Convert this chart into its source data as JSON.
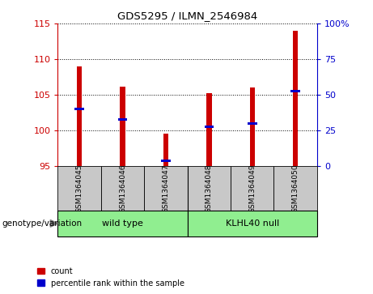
{
  "title": "GDS5295 / ILMN_2546984",
  "samples": [
    "GSM1364045",
    "GSM1364046",
    "GSM1364047",
    "GSM1364048",
    "GSM1364049",
    "GSM1364050"
  ],
  "bar_values": [
    109.0,
    106.2,
    99.5,
    105.2,
    106.0,
    114.0
  ],
  "percentile_values": [
    103.0,
    101.5,
    95.7,
    100.5,
    101.0,
    105.5
  ],
  "ylim": [
    95,
    115
  ],
  "yticks_left": [
    95,
    100,
    105,
    110,
    115
  ],
  "yticks_right": [
    0,
    25,
    50,
    75,
    100
  ],
  "bar_color": "#cc0000",
  "marker_color": "#0000cc",
  "bar_width": 0.12,
  "groups": [
    {
      "label": "wild type",
      "indices": [
        0,
        1,
        2
      ],
      "color": "#90ee90"
    },
    {
      "label": "KLHL40 null",
      "indices": [
        3,
        4,
        5
      ],
      "color": "#90ee90"
    }
  ],
  "group_label": "genotype/variation",
  "tick_label_bg": "#c8c8c8",
  "left_axis_color": "#cc0000",
  "right_axis_color": "#0000cc",
  "legend_items": [
    {
      "label": "count",
      "color": "#cc0000"
    },
    {
      "label": "percentile rank within the sample",
      "color": "#0000cc"
    }
  ]
}
